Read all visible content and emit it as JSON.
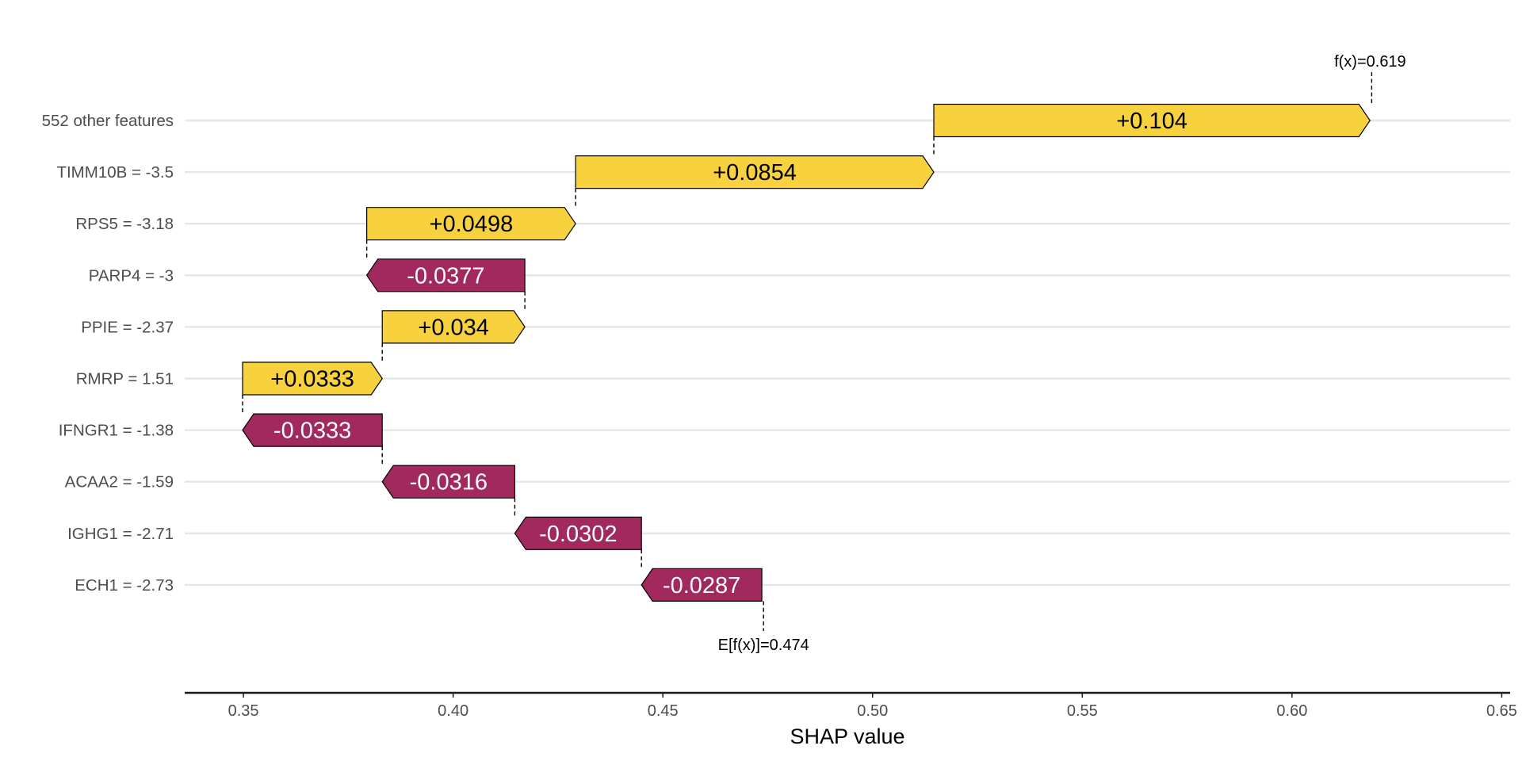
{
  "chart_data": {
    "type": "waterfall",
    "xlabel": "SHAP value",
    "xlim": [
      0.336,
      0.652
    ],
    "xticks": [
      {
        "value": 0.35,
        "label": "0.35"
      },
      {
        "value": 0.4,
        "label": "0.40"
      },
      {
        "value": 0.45,
        "label": "0.45"
      },
      {
        "value": 0.5,
        "label": "0.50"
      },
      {
        "value": 0.55,
        "label": "0.55"
      },
      {
        "value": 0.6,
        "label": "0.60"
      },
      {
        "value": 0.65,
        "label": "0.65"
      }
    ],
    "base_value": 0.474,
    "base_label": "E[f(x)]=0.474",
    "final_value": 0.619,
    "final_label": "f(x)=0.619",
    "grid": true,
    "colors": {
      "positive": "#f8d13e",
      "negative": "#a2295e",
      "positive_text": "#000000",
      "negative_text": "#ffffff"
    },
    "features": [
      {
        "name": "552 other features",
        "start": 0.5146,
        "end": 0.6186,
        "contribution": 0.104,
        "label": "+0.104"
      },
      {
        "name": "TIMM10B = -3.5",
        "start": 0.4292,
        "end": 0.5146,
        "contribution": 0.0854,
        "label": "+0.0854"
      },
      {
        "name": "RPS5 = -3.18",
        "start": 0.3794,
        "end": 0.4292,
        "contribution": 0.0498,
        "label": "+0.0498"
      },
      {
        "name": "PARP4 = -3",
        "start": 0.4171,
        "end": 0.3794,
        "contribution": -0.0377,
        "label": "-0.0377"
      },
      {
        "name": "PPIE = -2.37",
        "start": 0.3831,
        "end": 0.4171,
        "contribution": 0.034,
        "label": "+0.034"
      },
      {
        "name": "RMRP = 1.51",
        "start": 0.3498,
        "end": 0.3831,
        "contribution": 0.0333,
        "label": "+0.0333"
      },
      {
        "name": "IFNGR1 = -1.38",
        "start": 0.3831,
        "end": 0.3498,
        "contribution": -0.0333,
        "label": "-0.0333"
      },
      {
        "name": "ACAA2 = -1.59",
        "start": 0.4147,
        "end": 0.3831,
        "contribution": -0.0316,
        "label": "-0.0316"
      },
      {
        "name": "IGHG1 = -2.71",
        "start": 0.4449,
        "end": 0.4147,
        "contribution": -0.0302,
        "label": "-0.0302"
      },
      {
        "name": "ECH1 = -2.73",
        "start": 0.4736,
        "end": 0.4449,
        "contribution": -0.0287,
        "label": "-0.0287"
      }
    ]
  }
}
